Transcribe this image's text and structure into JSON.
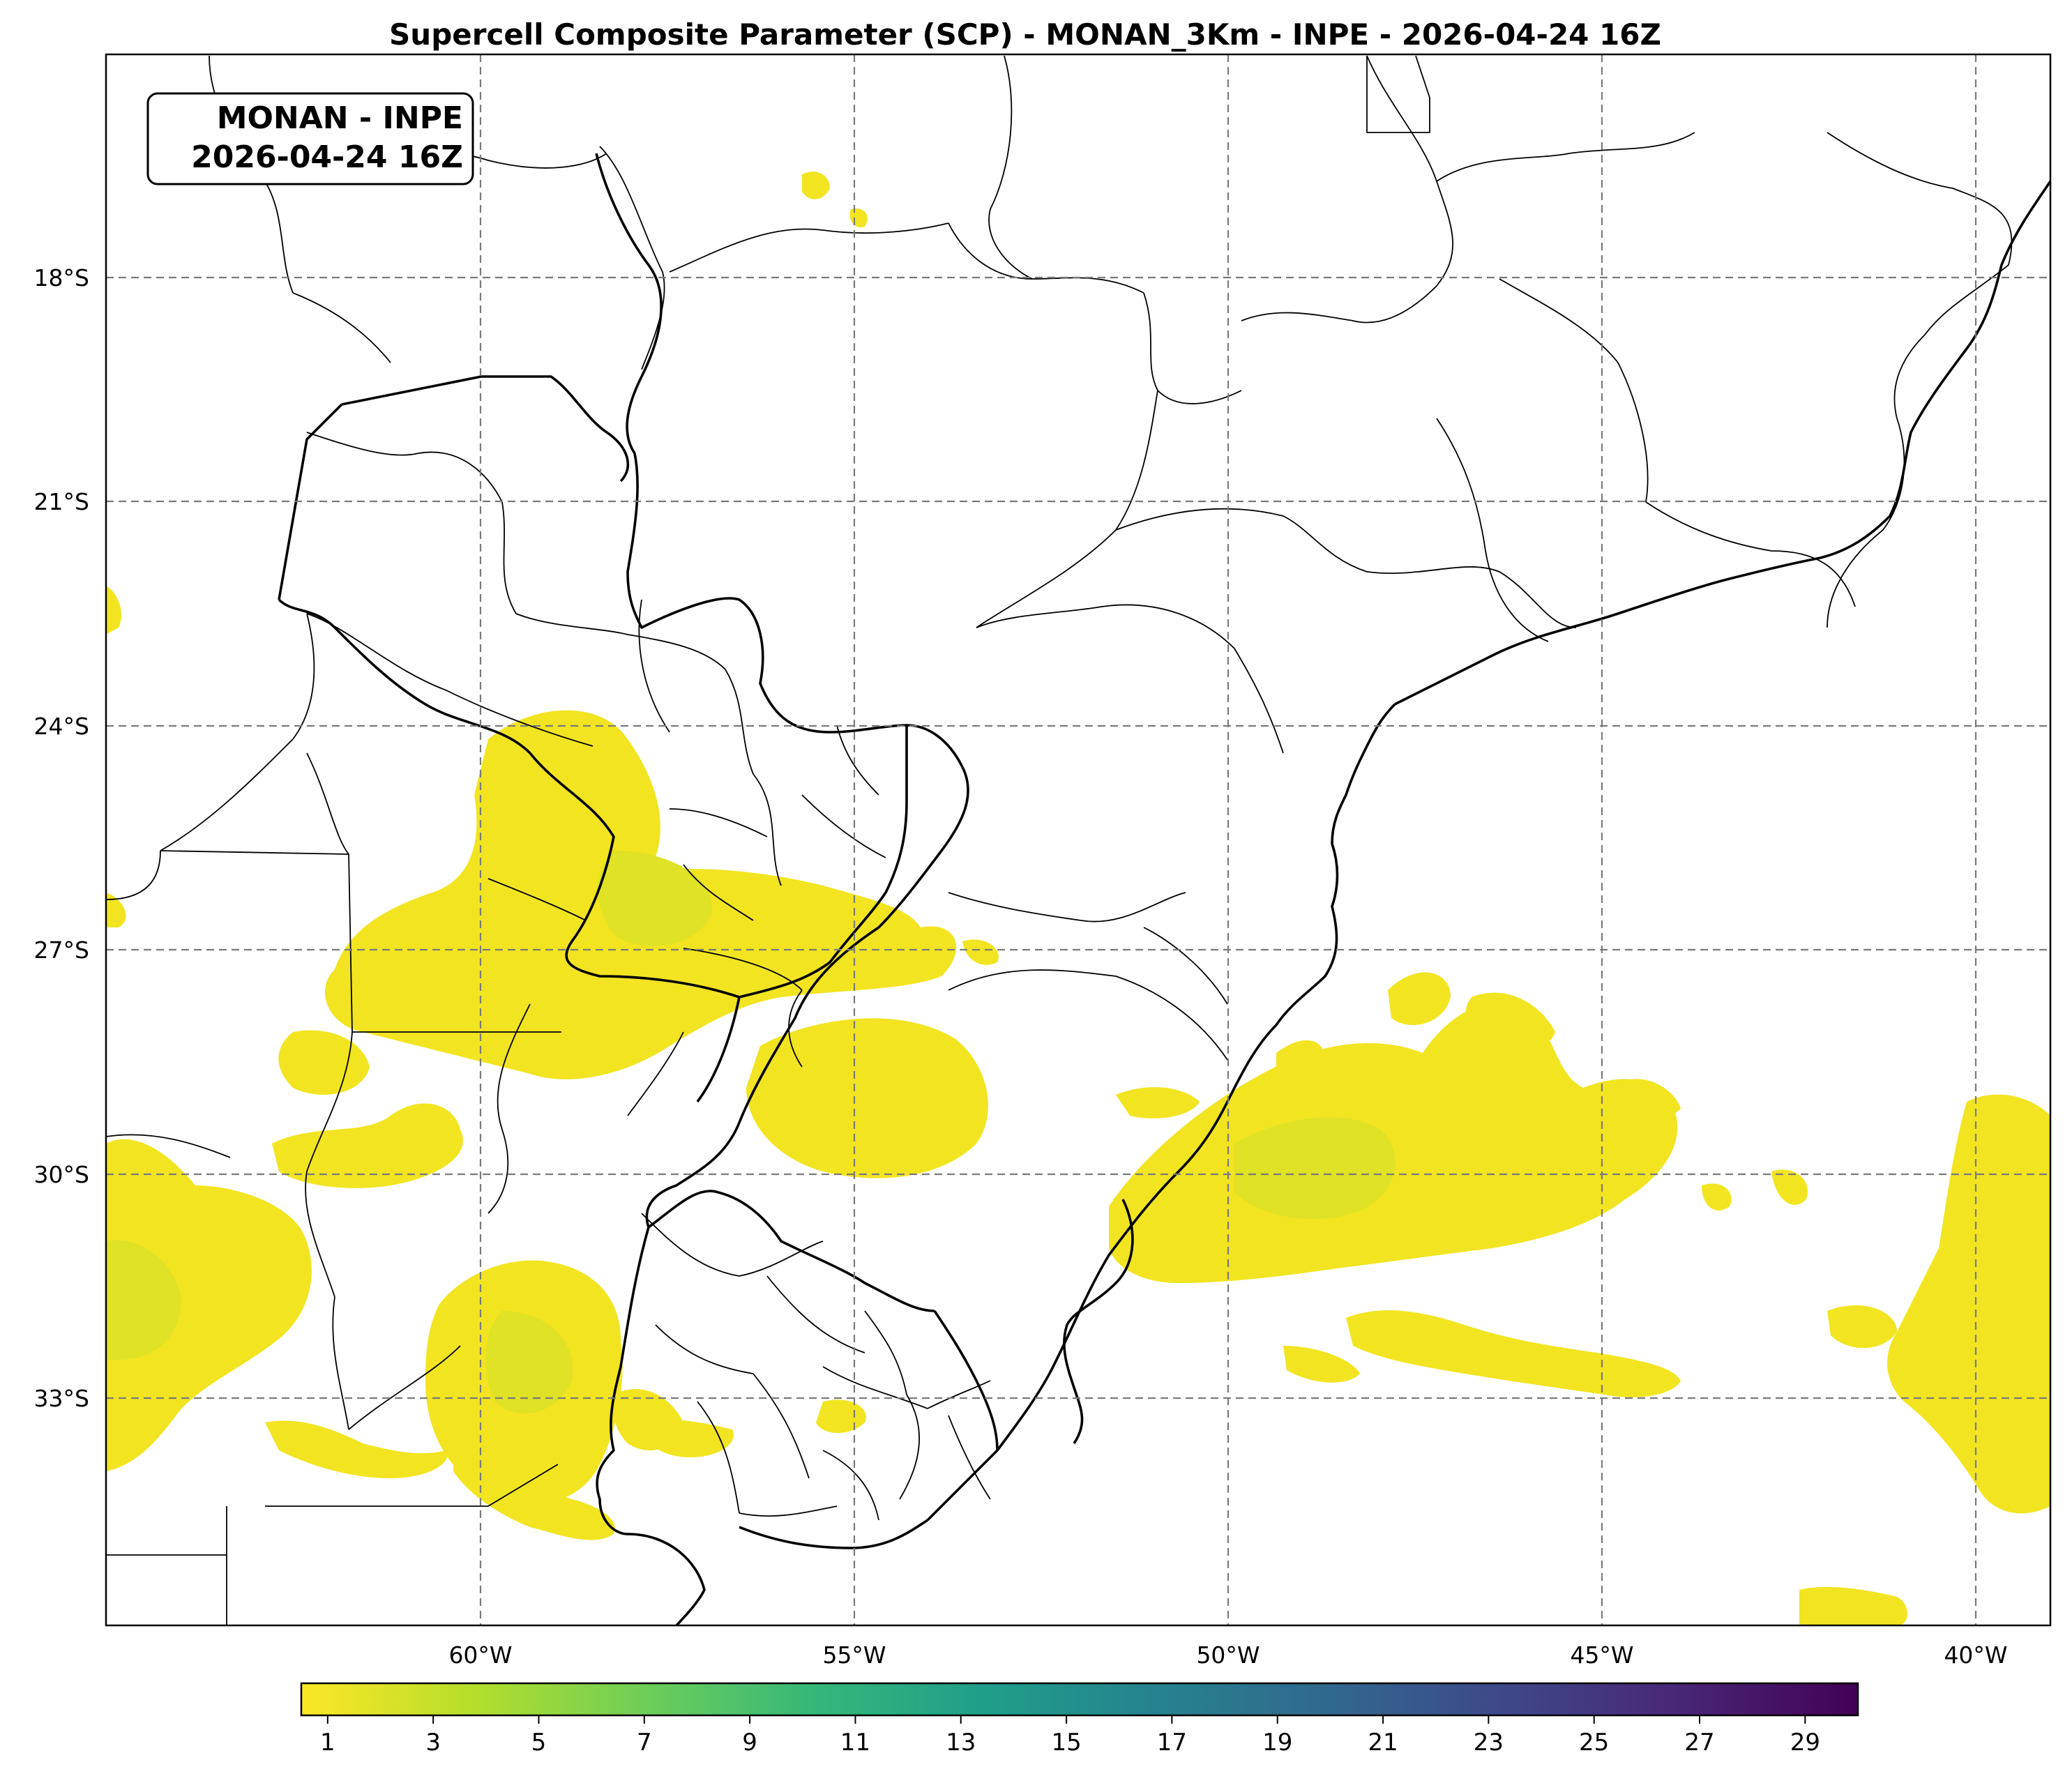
{
  "title": "Supercell Composite Parameter (SCP) - MONAN_3Km - INPE - 2026-04-24 16Z",
  "infobox": {
    "line1": "MONAN - INPE",
    "line2": "2026-04-24 16Z"
  },
  "map": {
    "lon_range": [
      -65,
      -39
    ],
    "lat_range": [
      -36.5,
      -15
    ],
    "lat_ticks": [
      {
        "value": -18,
        "label": "18°S"
      },
      {
        "value": -21,
        "label": "21°S"
      },
      {
        "value": -24,
        "label": "24°S"
      },
      {
        "value": -27,
        "label": "27°S"
      },
      {
        "value": -30,
        "label": "30°S"
      },
      {
        "value": -33,
        "label": "33°S"
      }
    ],
    "lon_ticks": [
      {
        "value": -60,
        "label": "60°W"
      },
      {
        "value": -55,
        "label": "55°W"
      },
      {
        "value": -50,
        "label": "50°W"
      },
      {
        "value": -45,
        "label": "45°W"
      },
      {
        "value": -40,
        "label": "40°W"
      }
    ],
    "grid": true
  },
  "colorbar": {
    "colormap": "viridis_r",
    "range": [
      0.5,
      30
    ],
    "ticks": [
      "1",
      "3",
      "5",
      "7",
      "9",
      "11",
      "13",
      "15",
      "17",
      "19",
      "21",
      "23",
      "25",
      "27",
      "29"
    ],
    "colors": [
      "#fde725",
      "#b5de2b",
      "#6ece58",
      "#35b779",
      "#1f9e89",
      "#26828e",
      "#31688e",
      "#3e4989",
      "#482878",
      "#440154"
    ]
  }
}
